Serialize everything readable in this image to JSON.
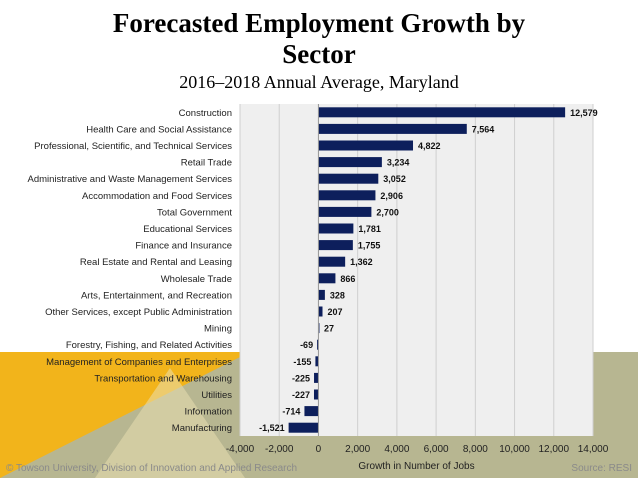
{
  "title": "Forecasted Employment Growth by Sector",
  "subtitle": "2016–2018 Annual Average, Maryland",
  "footer": {
    "credit": "© Towson University, Division of Innovation and Applied Research",
    "source": "Source: RESI"
  },
  "colors": {
    "bar": "#0d1f5c",
    "plot_bg": "#efefef",
    "gold": "#f2b41b",
    "olive": "#b7b691",
    "grid": "#cfcfcf"
  },
  "chart_data": {
    "type": "bar",
    "orientation": "horizontal",
    "categories": [
      "Construction",
      "Health Care and Social Assistance",
      "Professional, Scientific, and Technical Services",
      "Retail Trade",
      "Administrative and Waste Management Services",
      "Accommodation and Food Services",
      "Total Government",
      "Educational Services",
      "Finance and Insurance",
      "Real Estate and Rental and Leasing",
      "Wholesale Trade",
      "Arts, Entertainment, and Recreation",
      "Other Services, except Public Administration",
      "Mining",
      "Forestry, Fishing, and Related Activities",
      "Management of Companies and Enterprises",
      "Transportation and Warehousing",
      "Utilities",
      "Information",
      "Manufacturing"
    ],
    "values": [
      12579,
      7564,
      4822,
      3234,
      3052,
      2906,
      2700,
      1781,
      1755,
      1362,
      866,
      328,
      207,
      27,
      -69,
      -155,
      -225,
      -227,
      -714,
      -1521
    ],
    "data_labels": [
      "12,579",
      "7,564",
      "4,822",
      "3,234",
      "3,052",
      "2,906",
      "2,700",
      "1,781",
      "1,755",
      "1,362",
      "866",
      "328",
      "207",
      "27",
      "-69",
      "-155",
      "-225",
      "-227",
      "-714",
      "-1,521"
    ],
    "xlabel": "Growth in Number of Jobs",
    "ylabel": "",
    "xlim": [
      -4000,
      14000
    ],
    "xticks": [
      -4000,
      -2000,
      0,
      2000,
      4000,
      6000,
      8000,
      10000,
      12000,
      14000
    ],
    "xtick_labels": [
      "-4,000",
      "-2,000",
      "0",
      "2,000",
      "4,000",
      "6,000",
      "8,000",
      "10,000",
      "12,000",
      "14,000"
    ],
    "grid": true,
    "legend": "none"
  }
}
